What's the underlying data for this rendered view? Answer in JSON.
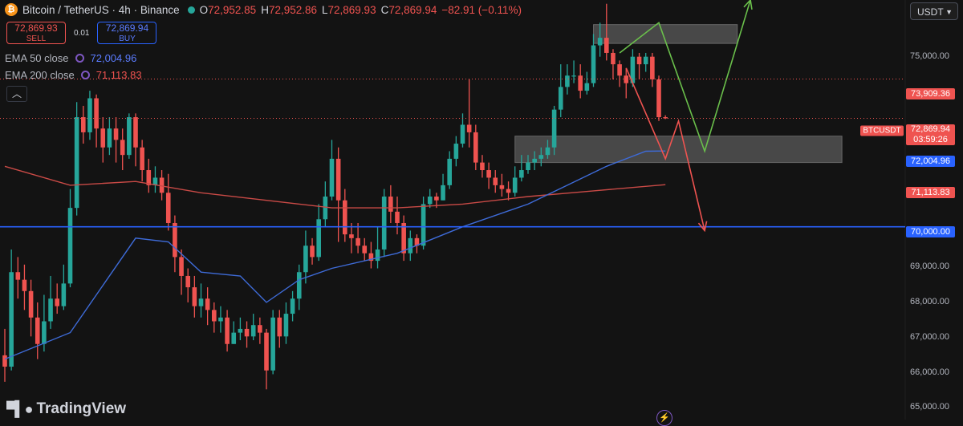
{
  "header": {
    "symbol": "Bitcoin / TetherUS · 4h · Binance",
    "open_label": "O",
    "open": "72,952.85",
    "high_label": "H",
    "high": "72,952.86",
    "low_label": "L",
    "low": "72,869.93",
    "close_label": "C",
    "close": "72,869.94",
    "change": "−82.91 (−0.11%)"
  },
  "trade": {
    "sell_price": "72,869.93",
    "sell_label": "SELL",
    "spread": "0.01",
    "buy_price": "72,869.94",
    "buy_label": "BUY"
  },
  "indicators": [
    {
      "name": "EMA 50 close",
      "value": "72,004.96",
      "color": "#5b7cff"
    },
    {
      "name": "EMA 200 close",
      "value": "71,113.83",
      "color": "#ef5350"
    }
  ],
  "collapse_icon": "chevron-up-icon",
  "currency_select": "USDT",
  "price_axis": [
    "75,000.00",
    "69,000.00",
    "68,000.00",
    "67,000.00",
    "66,000.00",
    "65,000.00"
  ],
  "price_labels": {
    "resistance": "73,909.36",
    "symbol_tag": "BTCUSDT",
    "current": "72,869.94",
    "countdown": "03:59:26",
    "ema50": "72,004.96",
    "ema200": "71,113.83",
    "support": "70,000.00"
  },
  "logo": "TradingView",
  "colors": {
    "up": "#26a69a",
    "down": "#ef5350",
    "ema50": "#3e6bd8",
    "ema200": "#c94a46",
    "support_line": "#2962ff"
  },
  "chart_data": {
    "type": "candlestick",
    "y_range": [
      64900,
      76000
    ],
    "support_level": 70000,
    "resistance_level": 73909.36,
    "candles": [
      [
        66600,
        66300,
        67300,
        65900
      ],
      [
        66300,
        68800,
        69400,
        66200
      ],
      [
        68800,
        68600,
        69200,
        68100
      ],
      [
        68600,
        68300,
        69000,
        67800
      ],
      [
        68300,
        67600,
        68600,
        67100
      ],
      [
        67600,
        66900,
        68000,
        66500
      ],
      [
        66900,
        67500,
        68200,
        66700
      ],
      [
        67500,
        68100,
        68700,
        67300
      ],
      [
        68100,
        67900,
        68500,
        67700
      ],
      [
        67900,
        68500,
        69000,
        67800
      ],
      [
        68500,
        70500,
        71000,
        68400
      ],
      [
        70500,
        72900,
        73300,
        70300
      ],
      [
        72900,
        72500,
        73200,
        72200
      ],
      [
        72500,
        73400,
        73600,
        72300
      ],
      [
        73400,
        72600,
        73500,
        72100
      ],
      [
        72600,
        72100,
        72900,
        71700
      ],
      [
        72100,
        72600,
        72900,
        71900
      ],
      [
        72600,
        72300,
        72900,
        71700
      ],
      [
        72300,
        71900,
        72600,
        71500
      ],
      [
        71900,
        72900,
        73000,
        71800
      ],
      [
        72900,
        72100,
        73000,
        71600
      ],
      [
        72100,
        71500,
        72300,
        71200
      ],
      [
        71500,
        71100,
        71800,
        70900
      ],
      [
        71100,
        71300,
        71600,
        70900
      ],
      [
        71300,
        70900,
        71500,
        70700
      ],
      [
        70900,
        70100,
        71400,
        69900
      ],
      [
        70100,
        69200,
        70300,
        68800
      ],
      [
        69200,
        68700,
        69400,
        68200
      ],
      [
        68700,
        68400,
        68900,
        68000
      ],
      [
        68400,
        67900,
        68700,
        67600
      ],
      [
        67900,
        68100,
        68500,
        67600
      ],
      [
        68100,
        67800,
        68400,
        67400
      ],
      [
        67800,
        67500,
        68000,
        67200
      ],
      [
        67500,
        67600,
        67900,
        67200
      ],
      [
        67600,
        66900,
        67800,
        66700
      ],
      [
        66900,
        67200,
        67500,
        66900
      ],
      [
        67200,
        67300,
        67600,
        67000
      ],
      [
        67300,
        67100,
        67500,
        66800
      ],
      [
        67100,
        67400,
        67700,
        67000
      ],
      [
        67400,
        67200,
        67600,
        66900
      ],
      [
        67200,
        66200,
        67300,
        65700
      ],
      [
        66200,
        67600,
        67800,
        66100
      ],
      [
        67600,
        67100,
        67800,
        66800
      ],
      [
        67100,
        67700,
        68000,
        66900
      ],
      [
        67700,
        68100,
        68300,
        67500
      ],
      [
        68100,
        68800,
        69000,
        67800
      ],
      [
        68800,
        69500,
        69900,
        68500
      ],
      [
        69500,
        69200,
        69700,
        69000
      ],
      [
        69200,
        70200,
        70600,
        69100
      ],
      [
        70200,
        70800,
        71200,
        70000
      ],
      [
        70800,
        71800,
        72300,
        70700
      ],
      [
        71800,
        70700,
        72100,
        69600
      ],
      [
        70700,
        69800,
        71000,
        69600
      ],
      [
        69800,
        69700,
        70100,
        69300
      ],
      [
        69700,
        69500,
        70100,
        69300
      ],
      [
        69500,
        69300,
        69700,
        69100
      ],
      [
        69300,
        69100,
        69600,
        68900
      ],
      [
        69100,
        69400,
        70000,
        68900
      ],
      [
        69400,
        70800,
        71000,
        69200
      ],
      [
        70800,
        70400,
        71100,
        70100
      ],
      [
        70400,
        70100,
        70800,
        69800
      ],
      [
        70100,
        69300,
        70300,
        69100
      ],
      [
        69300,
        69700,
        69900,
        69100
      ],
      [
        69700,
        69500,
        69800,
        69300
      ],
      [
        69500,
        70600,
        70800,
        69400
      ],
      [
        70600,
        70800,
        71000,
        70500
      ],
      [
        70800,
        70700,
        70900,
        70500
      ],
      [
        70700,
        71100,
        71400,
        70700
      ],
      [
        71100,
        71800,
        72000,
        71000
      ],
      [
        71800,
        72200,
        72400,
        71600
      ],
      [
        72200,
        72700,
        73000,
        72100
      ],
      [
        72700,
        72500,
        73900,
        72100
      ],
      [
        72500,
        71700,
        72700,
        71500
      ],
      [
        71700,
        71500,
        71900,
        71300
      ],
      [
        71500,
        71300,
        71700,
        71000
      ],
      [
        71300,
        71100,
        71500,
        70900
      ],
      [
        71100,
        71000,
        71400,
        70800
      ],
      [
        71000,
        70900,
        71200,
        70700
      ],
      [
        70900,
        71300,
        71600,
        70800
      ],
      [
        71300,
        71500,
        71900,
        71200
      ],
      [
        71500,
        71700,
        71900,
        71400
      ],
      [
        71700,
        71800,
        72000,
        71500
      ],
      [
        71800,
        71900,
        72100,
        71600
      ],
      [
        71900,
        72100,
        72300,
        71800
      ],
      [
        72100,
        73100,
        73200,
        71900
      ],
      [
        73100,
        73700,
        74300,
        72900
      ],
      [
        73700,
        74000,
        74300,
        73500
      ],
      [
        74000,
        74000,
        74400,
        73800
      ],
      [
        74000,
        73600,
        74300,
        73400
      ],
      [
        73600,
        73800,
        74100,
        73500
      ],
      [
        73800,
        74800,
        75100,
        73700
      ],
      [
        74800,
        75000,
        75400,
        74500
      ],
      [
        75000,
        74600,
        75900,
        74400
      ],
      [
        74600,
        74300,
        74700,
        73900
      ],
      [
        74300,
        74000,
        74400,
        73700
      ],
      [
        74000,
        73800,
        74200,
        73400
      ],
      [
        73800,
        74500,
        74700,
        73700
      ],
      [
        74500,
        74300,
        74600,
        73900
      ],
      [
        74300,
        74500,
        74600,
        74100
      ],
      [
        74500,
        73900,
        74600,
        73700
      ],
      [
        73900,
        72900,
        74000,
        72800
      ],
      [
        72900,
        72870,
        72950,
        72850
      ]
    ],
    "ema50": [
      [
        0,
        66500
      ],
      [
        10,
        67200
      ],
      [
        20,
        69700
      ],
      [
        25,
        69600
      ],
      [
        30,
        68800
      ],
      [
        36,
        68700
      ],
      [
        40,
        68000
      ],
      [
        45,
        68600
      ],
      [
        50,
        68900
      ],
      [
        60,
        69300
      ],
      [
        70,
        70000
      ],
      [
        80,
        70600
      ],
      [
        86,
        71100
      ],
      [
        92,
        71600
      ],
      [
        98,
        72000
      ],
      [
        101,
        72005
      ]
    ],
    "ema200": [
      [
        0,
        71600
      ],
      [
        10,
        71100
      ],
      [
        20,
        71200
      ],
      [
        30,
        70900
      ],
      [
        40,
        70700
      ],
      [
        50,
        70500
      ],
      [
        60,
        70500
      ],
      [
        70,
        70600
      ],
      [
        80,
        70800
      ],
      [
        90,
        70950
      ],
      [
        101,
        71114
      ]
    ],
    "zones": [
      {
        "label": "upper",
        "x": [
          90,
          112
        ],
        "y": [
          74850,
          75350
        ]
      },
      {
        "label": "lower",
        "x": [
          78,
          128
        ],
        "y": [
          71700,
          72400
        ]
      }
    ],
    "projections": [
      {
        "color": "#6abf4b",
        "points": [
          [
            94,
            74600
          ],
          [
            100,
            75400
          ],
          [
            107,
            72000
          ],
          [
            114,
            76000
          ]
        ]
      },
      {
        "color": "#ef5350",
        "points": [
          [
            95,
            74200
          ],
          [
            101,
            71800
          ],
          [
            103,
            72800
          ],
          [
            107,
            69900
          ]
        ]
      }
    ]
  }
}
